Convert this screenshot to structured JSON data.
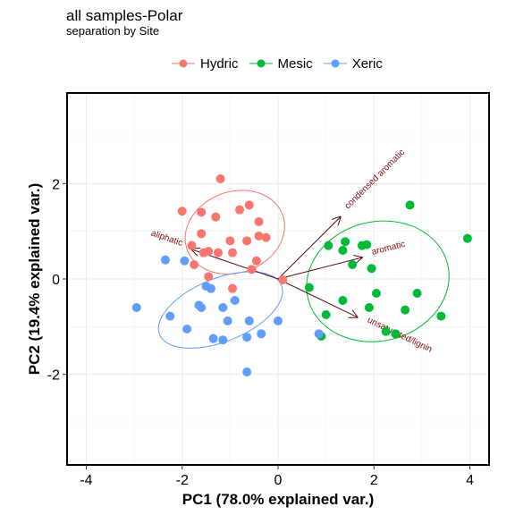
{
  "chart_data": {
    "type": "scatter",
    "title": "all samples-Polar",
    "subtitle": "separation by Site",
    "xlabel": "PC1 (78.0% explained var.)",
    "ylabel": "PC2 (19.4% explained var.)",
    "xlim": [
      -4.4,
      4.4
    ],
    "ylim": [
      -3.9,
      3.9
    ],
    "x_ticks": [
      -4,
      -2,
      0,
      2,
      4
    ],
    "y_ticks": [
      -2,
      0,
      2
    ],
    "grid": true,
    "legend_position": "top",
    "colors": {
      "Hydric": "#F8766D",
      "Mesic": "#00BA38",
      "Xeric": "#619CFF",
      "arrow": "#5a0a0a"
    },
    "series": [
      {
        "name": "Hydric",
        "points": [
          [
            -1.2,
            2.1
          ],
          [
            -2.0,
            1.42
          ],
          [
            -1.6,
            1.4
          ],
          [
            -0.6,
            1.55
          ],
          [
            -0.8,
            1.45
          ],
          [
            -1.3,
            1.3
          ],
          [
            -0.4,
            1.2
          ],
          [
            -0.4,
            0.9
          ],
          [
            -1.6,
            0.95
          ],
          [
            -1.0,
            0.8
          ],
          [
            -0.65,
            0.8
          ],
          [
            -0.25,
            0.87
          ],
          [
            -1.8,
            0.7
          ],
          [
            -1.45,
            0.58
          ],
          [
            -1.55,
            0.55
          ],
          [
            -1.25,
            0.55
          ],
          [
            -0.95,
            0.55
          ],
          [
            -1.75,
            0.3
          ],
          [
            -0.45,
            0.38
          ],
          [
            -0.55,
            0.2
          ],
          [
            -1.45,
            0.05
          ],
          [
            -0.95,
            -0.2
          ],
          [
            0.1,
            -0.02
          ]
        ]
      },
      {
        "name": "Mesic",
        "points": [
          [
            2.75,
            1.55
          ],
          [
            3.95,
            0.85
          ],
          [
            1.4,
            0.78
          ],
          [
            1.05,
            0.7
          ],
          [
            1.75,
            0.7
          ],
          [
            1.85,
            0.72
          ],
          [
            1.35,
            0.6
          ],
          [
            1.55,
            0.3
          ],
          [
            1.95,
            0.22
          ],
          [
            0.65,
            -0.18
          ],
          [
            2.05,
            -0.3
          ],
          [
            2.9,
            -0.3
          ],
          [
            1.35,
            -0.45
          ],
          [
            1.0,
            -0.75
          ],
          [
            1.9,
            -0.6
          ],
          [
            2.65,
            -0.65
          ],
          [
            3.4,
            -0.78
          ],
          [
            2.25,
            -1.1
          ],
          [
            2.45,
            -1.15
          ],
          [
            0.9,
            -1.2
          ]
        ]
      },
      {
        "name": "Xeric",
        "points": [
          [
            -2.35,
            0.4
          ],
          [
            -1.95,
            0.38
          ],
          [
            -1.5,
            -0.15
          ],
          [
            -1.4,
            -0.2
          ],
          [
            -0.9,
            -0.45
          ],
          [
            -1.65,
            -0.55
          ],
          [
            -1.6,
            -0.6
          ],
          [
            -2.95,
            -0.6
          ],
          [
            -1.15,
            -0.6
          ],
          [
            -2.25,
            -0.78
          ],
          [
            -0.6,
            -0.88
          ],
          [
            -1.05,
            -0.88
          ],
          [
            0.0,
            -0.88
          ],
          [
            -1.9,
            -1.05
          ],
          [
            -0.35,
            -1.15
          ],
          [
            -1.35,
            -1.25
          ],
          [
            -1.15,
            -1.28
          ],
          [
            -0.65,
            -1.22
          ],
          [
            -0.65,
            -1.95
          ],
          [
            0.85,
            -1.15
          ]
        ]
      }
    ],
    "ellipses": [
      {
        "group": "Hydric",
        "center": [
          -0.9,
          0.98
        ],
        "rx": 1.06,
        "ry": 0.85,
        "angle_deg": -20
      },
      {
        "group": "Mesic",
        "center": [
          2.08,
          -0.05
        ],
        "rx": 1.5,
        "ry": 1.25,
        "angle_deg": -14
      },
      {
        "group": "Xeric",
        "center": [
          -1.2,
          -0.65
        ],
        "rx": 1.37,
        "ry": 0.66,
        "angle_deg": -22
      }
    ],
    "arrows": [
      {
        "label": "condensed aromatic",
        "from": [
          0,
          0
        ],
        "to": [
          1.3,
          1.3
        ]
      },
      {
        "label": "aliphatic",
        "from": [
          0,
          0
        ],
        "to": [
          -1.8,
          0.62
        ]
      },
      {
        "label": "aromatic",
        "from": [
          0,
          0
        ],
        "to": [
          1.75,
          0.45
        ]
      },
      {
        "label": "unsaturated/lignin",
        "from": [
          0,
          0
        ],
        "to": [
          1.65,
          -0.8
        ]
      }
    ]
  }
}
